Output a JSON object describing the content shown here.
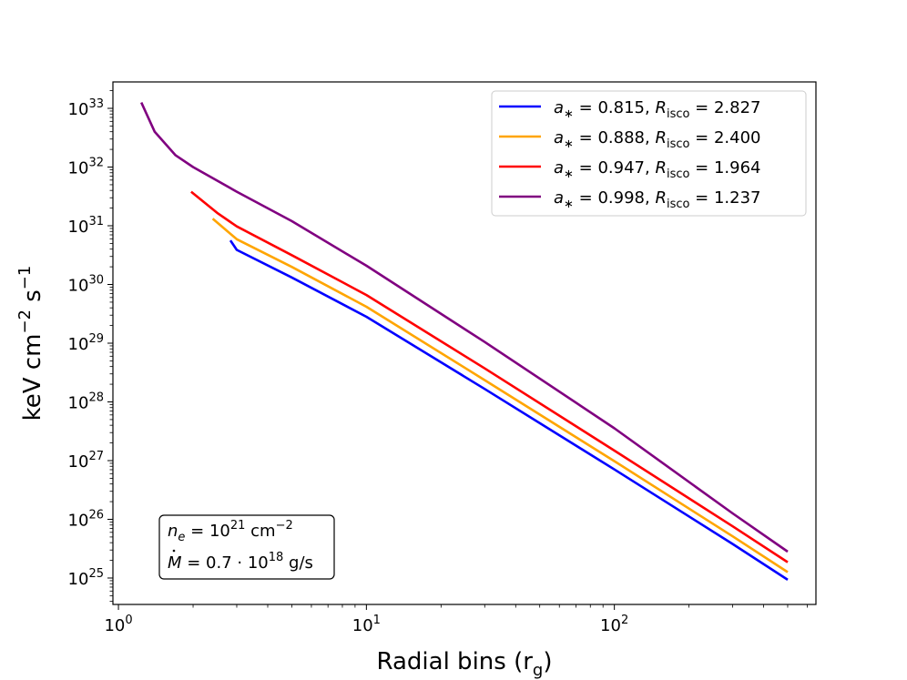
{
  "chart_data": {
    "type": "line",
    "xscale": "log",
    "yscale": "log",
    "xlabel": "Radial bins (r",
    "xlabel_sub": "g",
    "xlabel_end": ")",
    "ylabel_parts": [
      "keV cm",
      "−2",
      " s",
      "−1"
    ],
    "xlim": [
      0.95,
      650
    ],
    "ylim_exp": [
      24.55,
      33.45
    ],
    "x_ticks": [
      {
        "value": 1,
        "base": "10",
        "exp": "0"
      },
      {
        "value": 10,
        "base": "10",
        "exp": "1"
      },
      {
        "value": 100,
        "base": "10",
        "exp": "2"
      }
    ],
    "y_ticks": [
      {
        "exp_value": 25,
        "base": "10",
        "exp": "25"
      },
      {
        "exp_value": 26,
        "base": "10",
        "exp": "26"
      },
      {
        "exp_value": 27,
        "base": "10",
        "exp": "27"
      },
      {
        "exp_value": 28,
        "base": "10",
        "exp": "28"
      },
      {
        "exp_value": 29,
        "base": "10",
        "exp": "29"
      },
      {
        "exp_value": 30,
        "base": "10",
        "exp": "30"
      },
      {
        "exp_value": 31,
        "base": "10",
        "exp": "31"
      },
      {
        "exp_value": 32,
        "base": "10",
        "exp": "32"
      },
      {
        "exp_value": 33,
        "base": "10",
        "exp": "33"
      }
    ],
    "series": [
      {
        "name": "a* = 0.815, R_isco = 2.827",
        "a_label": "a",
        "a_value": "= 0.815,",
        "r_label": "R",
        "r_sub": "isco",
        "r_value": "= 2.827",
        "color": "#0000ff",
        "x": [
          2.827,
          3,
          5,
          10,
          30,
          100,
          300,
          500
        ],
        "log10_y": [
          30.75,
          30.59,
          30.12,
          29.45,
          28.22,
          26.85,
          25.58,
          24.97
        ]
      },
      {
        "name": "a* = 0.888, R_isco = 2.400",
        "a_label": "a",
        "a_value": "= 0.888,",
        "r_label": "R",
        "r_sub": "isco",
        "r_value": "= 2.400",
        "color": "#ffa500",
        "x": [
          2.4,
          3,
          5,
          10,
          30,
          100,
          300,
          500
        ],
        "log10_y": [
          31.12,
          30.77,
          30.3,
          29.62,
          28.37,
          26.99,
          25.71,
          25.1
        ]
      },
      {
        "name": "a* = 0.947, R_isco = 1.964",
        "a_label": "a",
        "a_value": "= 0.947,",
        "r_label": "R",
        "r_sub": "isco",
        "r_value": "= 1.964",
        "color": "#ff0000",
        "x": [
          1.964,
          2.5,
          3,
          5,
          10,
          30,
          100,
          300,
          500
        ],
        "log10_y": [
          31.58,
          31.22,
          30.99,
          30.5,
          29.82,
          28.57,
          27.17,
          25.88,
          25.27
        ]
      },
      {
        "name": "a* = 0.998, R_isco = 1.237",
        "a_label": "a",
        "a_value": "= 0.998,",
        "r_label": "R",
        "r_sub": "isco",
        "r_value": "= 1.237",
        "color": "#800080",
        "x": [
          1.237,
          1.4,
          1.7,
          2,
          3,
          5,
          10,
          30,
          100,
          300,
          500
        ],
        "log10_y": [
          33.1,
          32.6,
          32.2,
          32.0,
          31.58,
          31.08,
          30.32,
          29.02,
          27.55,
          26.1,
          25.45
        ]
      }
    ],
    "legend_position": "upper right",
    "annotation": {
      "ne_label": "n",
      "ne_sub": "e",
      "ne_eq": " = 10",
      "ne_exp": "21",
      "ne_unit": " cm",
      "ne_unit_exp": "−2",
      "mdot_label": "M",
      "mdot_eq": " = 0.7 · 10",
      "mdot_exp": "18",
      "mdot_unit": " g/s"
    }
  }
}
